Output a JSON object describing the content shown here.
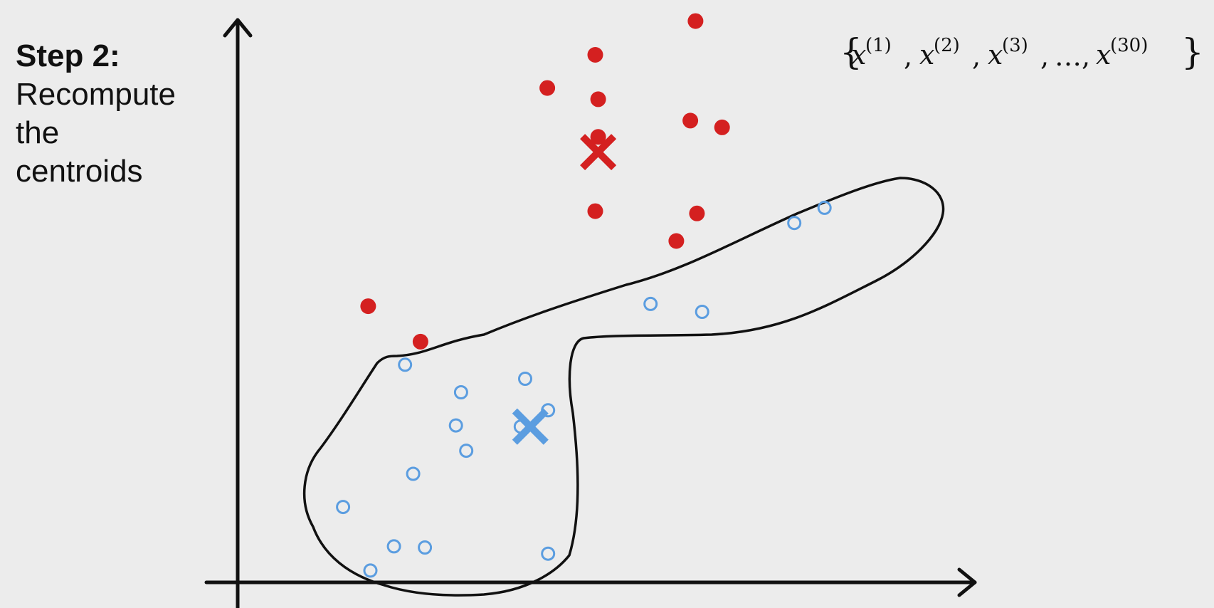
{
  "step": {
    "title": "Step 2:",
    "desc_lines": [
      "Recompute",
      "the",
      "centroids"
    ]
  },
  "dataset_label": {
    "open": "{",
    "var": "x",
    "indices": [
      "(1)",
      "(2)",
      "(3)",
      "(30)"
    ],
    "ellipsis": "…",
    "close": "}"
  },
  "colors": {
    "cluster_red": "#d42020",
    "cluster_blue": "#5b9de0",
    "axis": "#111111",
    "boundary": "#111111"
  },
  "icons": {
    "red_centroid": "x-mark-icon",
    "blue_centroid": "x-mark-icon"
  },
  "chart_data": {
    "type": "scatter",
    "title": "",
    "xlabel": "",
    "ylabel": "",
    "xlim": [
      0,
      100
    ],
    "ylim": [
      0,
      100
    ],
    "grid": false,
    "series": [
      {
        "color": "#d42020",
        "marker": "filled-circle",
        "points": [
          [
            62.1,
            99.8
          ],
          [
            48.5,
            93.8
          ],
          [
            42.0,
            87.9
          ],
          [
            48.9,
            85.9
          ],
          [
            61.4,
            82.1
          ],
          [
            65.7,
            80.9
          ],
          [
            48.9,
            79.2
          ],
          [
            48.5,
            66.0
          ],
          [
            62.3,
            65.6
          ],
          [
            59.5,
            60.7
          ],
          [
            17.7,
            49.1
          ],
          [
            24.8,
            42.8
          ]
        ]
      },
      {
        "color": "#5b9de0",
        "marker": "hollow-circle",
        "points": [
          [
            79.6,
            66.6
          ],
          [
            75.5,
            63.9
          ],
          [
            56.0,
            49.5
          ],
          [
            63.0,
            48.1
          ],
          [
            22.7,
            38.7
          ],
          [
            39.0,
            36.2
          ],
          [
            30.3,
            33.8
          ],
          [
            42.1,
            30.6
          ],
          [
            29.6,
            27.9
          ],
          [
            38.4,
            27.7
          ],
          [
            31.0,
            23.4
          ],
          [
            23.8,
            19.3
          ],
          [
            14.3,
            13.4
          ],
          [
            21.2,
            6.4
          ],
          [
            25.4,
            6.2
          ],
          [
            42.1,
            5.1
          ],
          [
            18.0,
            2.1
          ]
        ]
      }
    ],
    "centroids": [
      {
        "color": "#d42020",
        "x": 48.9,
        "y": 76.5
      },
      {
        "color": "#5b9de0",
        "x": 39.7,
        "y": 27.7
      }
    ]
  }
}
